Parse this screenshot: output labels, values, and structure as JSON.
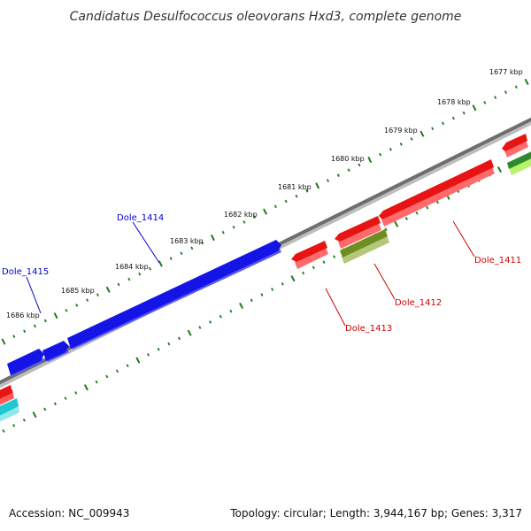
{
  "title": "Candidatus Desulfococcus oleovorans Hxd3, complete genome",
  "accession": "Accession: NC_009943",
  "summary": "Topology: circular; Length: 3,944,167 bp; Genes: 3,317",
  "colors": {
    "backbone": "#777777",
    "tick": "#1e7a1e",
    "forward_gene": "#1414e6",
    "reverse_gene": "#e81414",
    "olive_gene": "#6f8e22",
    "label_forward": "#0000cc",
    "label_reverse": "#cc0000"
  },
  "ticks": [
    {
      "label": "1677 kbp"
    },
    {
      "label": "1678 kbp"
    },
    {
      "label": "1679 kbp"
    },
    {
      "label": "1680 kbp"
    },
    {
      "label": "1681 kbp"
    },
    {
      "label": "1682 kbp"
    },
    {
      "label": "1683 kbp"
    },
    {
      "label": "1684 kbp"
    },
    {
      "label": "1685 kbp"
    },
    {
      "label": "1686 kbp"
    }
  ],
  "genes": [
    {
      "name": "Dole_1415",
      "strand": "forward"
    },
    {
      "name": "Dole_1414",
      "strand": "forward"
    },
    {
      "name": "Dole_1413",
      "strand": "reverse"
    },
    {
      "name": "Dole_1412",
      "strand": "reverse"
    },
    {
      "name": "Dole_1411",
      "strand": "reverse"
    }
  ]
}
